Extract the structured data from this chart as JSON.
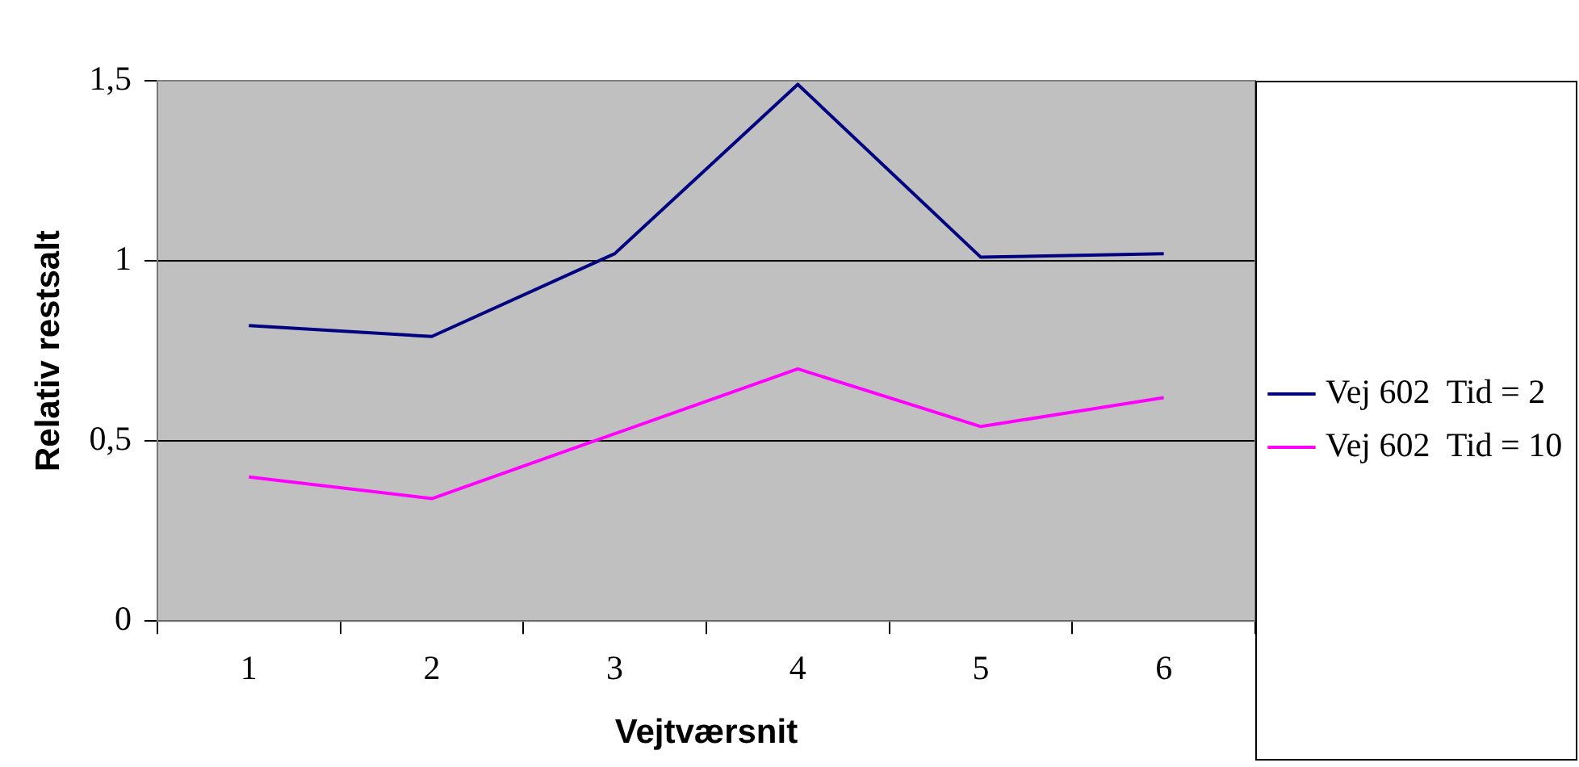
{
  "chart_data": {
    "type": "line",
    "xlabel": "Vejtværsnit",
    "ylabel": "Relativ restsalt",
    "categories": [
      "1",
      "2",
      "3",
      "4",
      "5",
      "6"
    ],
    "series": [
      {
        "name": "Vej 602  Tid = 2",
        "color": "#000080",
        "values": [
          0.82,
          0.79,
          1.02,
          1.49,
          1.01,
          1.02
        ]
      },
      {
        "name": "Vej 602  Tid = 10",
        "color": "#ff00ff",
        "values": [
          0.4,
          0.34,
          0.52,
          0.7,
          0.54,
          0.62
        ]
      }
    ],
    "ylim": [
      0,
      1.5
    ],
    "yticks": [
      {
        "value": 0,
        "label": "0"
      },
      {
        "value": 0.5,
        "label": "0,5"
      },
      {
        "value": 1,
        "label": "1"
      },
      {
        "value": 1.5,
        "label": "1,5"
      }
    ],
    "grid": "y",
    "legend": "right",
    "marker": "none",
    "line_style": "solid"
  }
}
